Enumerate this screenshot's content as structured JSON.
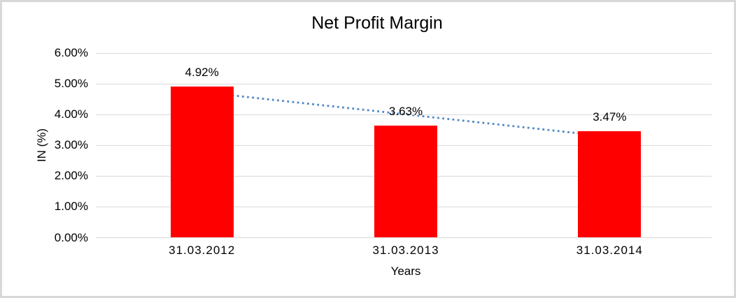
{
  "frame": {
    "border_color": "#d8d8d8",
    "background_color": "#ffffff"
  },
  "chart_data": {
    "type": "bar",
    "title": "Net Profit Margin",
    "categories": [
      "31.03.2012",
      "31.03.2013",
      "31.03.2014"
    ],
    "values": [
      4.92,
      3.63,
      3.47
    ],
    "data_labels": [
      "4.92%",
      "3.63%",
      "3.47%"
    ],
    "xlabel": "Years",
    "ylabel": "IN (%)",
    "ylim": [
      0,
      6
    ],
    "ytick_labels": [
      "0.00%",
      "1.00%",
      "2.00%",
      "3.00%",
      "4.00%",
      "5.00%",
      "6.00%"
    ],
    "grid": true,
    "legend": "none",
    "bar_color": "#ff0000",
    "gridline_color": "#d9d9d9",
    "text_color": "#000000",
    "trendline": {
      "type": "linear",
      "style": "dotted",
      "color": "#4f87c5"
    }
  }
}
